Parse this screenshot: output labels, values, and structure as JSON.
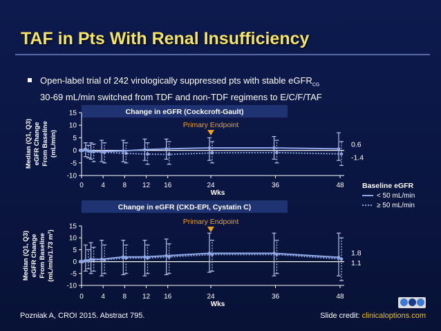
{
  "slide": {
    "title": "TAF in Pts With Renal Insufficiency",
    "bullet_line1": "Open-label trial of 242 virologically suppressed pts with stable eGFR",
    "bullet_sub": "CG",
    "bullet_line2": "30-69 mL/min switched from TDF and non-TDF regimens to E/C/F/TAF",
    "footer_citation": "Pozniak A, CROI 2015. Abstract 795.",
    "footer_credit_label": "Slide credit: ",
    "footer_credit_link": "clinicaloptions.com"
  },
  "legend": {
    "title": "Baseline eGFR",
    "items": [
      {
        "label": "< 50 mL/min",
        "style": "solid"
      },
      {
        "label": "≥ 50 mL/min",
        "style": "dotted"
      }
    ]
  },
  "colors": {
    "accent": "#f4e36a",
    "series": "#8fa8e8",
    "errorbar": "#b8c4e8",
    "panel_header": "#1f3272",
    "marker": "#f0a020"
  },
  "chart_data": [
    {
      "type": "line",
      "title": "Change in eGFR (Cockcroft-Gault)",
      "annotation": "Primary Endpoint",
      "annotation_x": 24,
      "ylabel_lines": [
        "Median (Q1, Q3)",
        "eGFR Change",
        "From Baseline",
        "(mL/min)"
      ],
      "xlabel": "Wks",
      "xticks": [
        0,
        4,
        8,
        12,
        16,
        24,
        36,
        48
      ],
      "yticks": [
        15,
        10,
        5,
        0,
        -5,
        -10
      ],
      "ylim": [
        -10,
        15
      ],
      "xlim": [
        0,
        48
      ],
      "x": [
        0,
        1,
        2,
        4,
        8,
        12,
        16,
        24,
        36,
        48
      ],
      "series": [
        {
          "values": [
            0,
            0.5,
            -0.5,
            -0.5,
            -0.2,
            0.3,
            0.6,
            1.0,
            1.0,
            0.6
          ],
          "q1": [
            0,
            -2.5,
            -3.5,
            -4.5,
            -4.5,
            -4,
            -3.5,
            -4,
            -3.5,
            -4
          ],
          "q3": [
            0,
            3,
            3,
            4,
            4,
            4.5,
            4.5,
            5,
            5.5,
            7
          ],
          "end_label": "0.6"
        },
        {
          "values": [
            0,
            -0.3,
            -0.6,
            -0.8,
            -1.2,
            -1.5,
            -1.6,
            -1.0,
            -0.9,
            -1.4
          ],
          "q1": [
            0,
            -3,
            -4.5,
            -5,
            -5,
            -5.5,
            -5.5,
            -5,
            -5,
            -6
          ],
          "q3": [
            0,
            2,
            2.5,
            3,
            3,
            3,
            3.5,
            3.5,
            4,
            3.5
          ],
          "end_label": "-1.4"
        }
      ]
    },
    {
      "type": "line",
      "title": "Change in eGFR (CKD-EPI, Cystatin C)",
      "annotation": "Primary Endpoint",
      "annotation_x": 24,
      "ylabel_lines": [
        "Median (Q1, Q3)",
        "eGFR Change",
        "From Baseline",
        "(mL/min/1.73 m²)"
      ],
      "xlabel": "Wks",
      "xticks": [
        0,
        4,
        8,
        12,
        16,
        24,
        36,
        48
      ],
      "yticks": [
        15,
        10,
        5,
        0,
        -5,
        -10
      ],
      "ylim": [
        -10,
        15
      ],
      "xlim": [
        0,
        48
      ],
      "x": [
        0,
        1,
        2,
        4,
        8,
        12,
        16,
        24,
        36,
        48
      ],
      "series": [
        {
          "values": [
            0,
            0.5,
            1,
            1,
            2,
            2,
            2.5,
            3.5,
            3.5,
            1.8
          ],
          "q1": [
            0,
            -4,
            -5,
            -6,
            -5.5,
            -6,
            -5.5,
            -4.5,
            -6,
            -6
          ],
          "q3": [
            0,
            7,
            8,
            9,
            9,
            9,
            9.5,
            12,
            12,
            12
          ],
          "end_label": "1.8"
        },
        {
          "values": [
            0,
            0.3,
            0.8,
            0.8,
            1.5,
            1.5,
            2,
            3,
            3,
            1.1
          ],
          "q1": [
            0,
            -3,
            -4,
            -5,
            -5,
            -5,
            -5,
            -4,
            -5,
            -8
          ],
          "q3": [
            0,
            5,
            6,
            7,
            7,
            7,
            7.5,
            9,
            9,
            10
          ],
          "end_label": "1.1"
        }
      ]
    }
  ]
}
